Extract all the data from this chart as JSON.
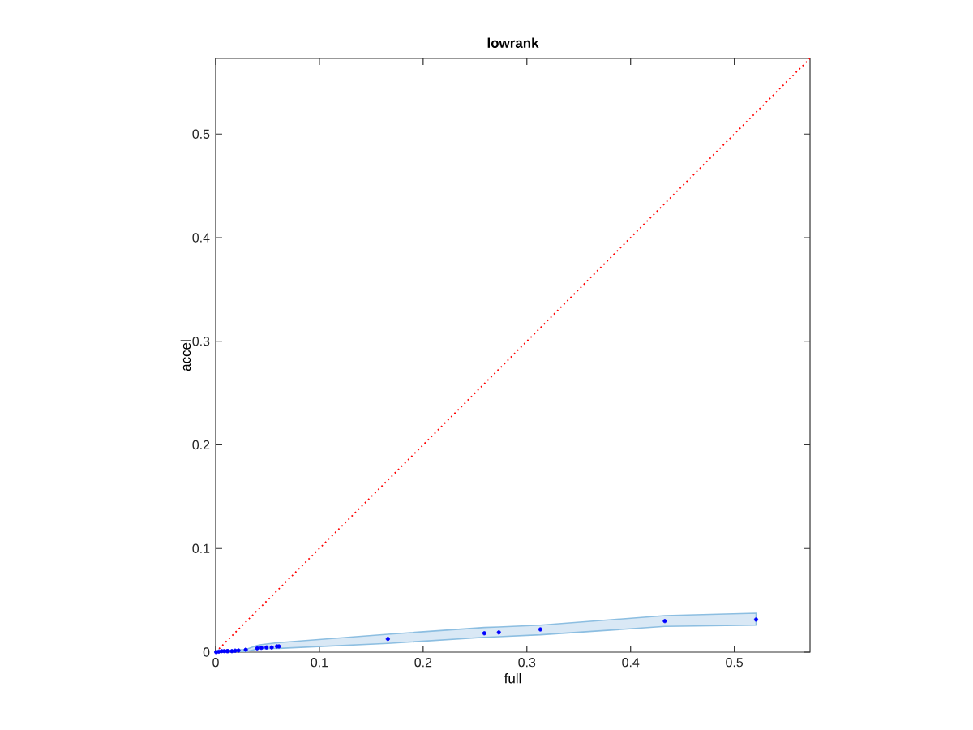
{
  "chart_data": {
    "type": "scatter",
    "title": "lowrank",
    "xlabel": "full",
    "ylabel": "accel",
    "xlim": [
      0,
      0.573
    ],
    "ylim": [
      0,
      0.573
    ],
    "xticks": [
      0,
      0.1,
      0.2,
      0.3,
      0.4,
      0.5
    ],
    "yticks": [
      0,
      0.1,
      0.2,
      0.3,
      0.4,
      0.5
    ],
    "marker": "circle",
    "series": [
      {
        "color": "#0000ff",
        "x": [
          0.0005,
          0.003,
          0.0057,
          0.0083,
          0.011,
          0.012,
          0.0156,
          0.0188,
          0.022,
          0.029,
          0.04,
          0.044,
          0.049,
          0.054,
          0.059,
          0.061,
          0.166,
          0.259,
          0.273,
          0.313,
          0.433,
          0.521
        ],
        "values": [
          0,
          0.0005,
          0.001,
          0.001,
          0.001,
          0.001,
          0.001,
          0.0014,
          0.0016,
          0.0023,
          0.0037,
          0.0042,
          0.0045,
          0.0045,
          0.0055,
          0.0055,
          0.0128,
          0.0182,
          0.019,
          0.0219,
          0.03,
          0.0314
        ],
        "lower": [
          0,
          0,
          0.0003,
          0.0003,
          0.0003,
          0.0003,
          0.0003,
          0.0005,
          0.0006,
          0.0005,
          0.003,
          0.0032,
          0.0034,
          0.0035,
          0.0035,
          0.0036,
          0.0084,
          0.0143,
          0.0149,
          0.0167,
          0.0248,
          0.026
        ],
        "upper": [
          0.0005,
          0.001,
          0.0015,
          0.0016,
          0.0017,
          0.0018,
          0.0019,
          0.0021,
          0.0023,
          0.0026,
          0.0065,
          0.0072,
          0.0078,
          0.0084,
          0.009,
          0.0092,
          0.0172,
          0.0238,
          0.0243,
          0.026,
          0.0352,
          0.0376
        ]
      },
      {
        "type": "line",
        "color": "#ff0000",
        "line_style": "dotted",
        "marker": "none",
        "x": [
          0,
          0.573
        ],
        "values": [
          0,
          0.573
        ]
      }
    ]
  }
}
